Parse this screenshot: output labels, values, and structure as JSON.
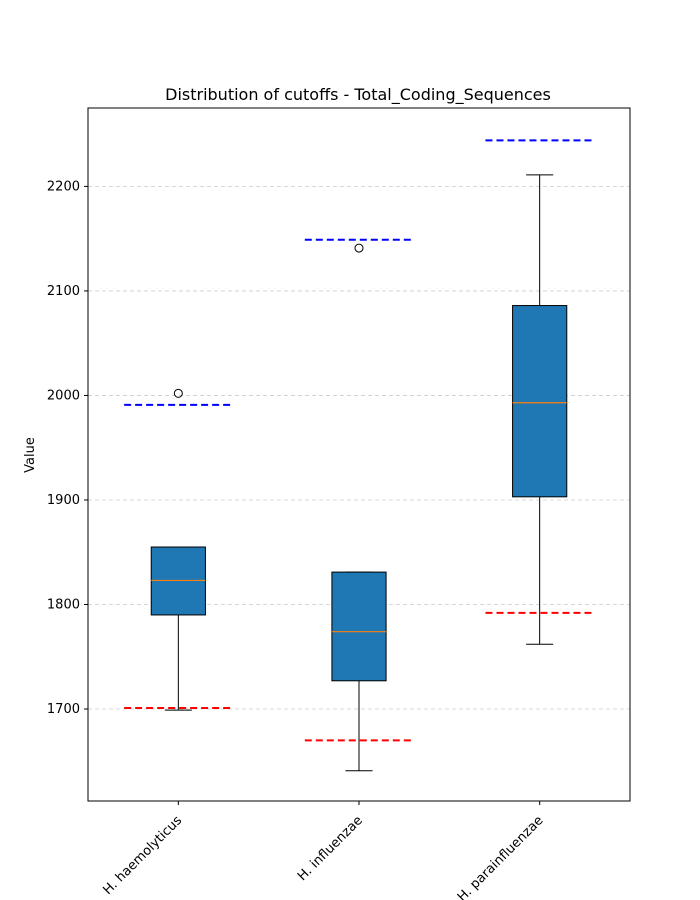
{
  "chart_data": {
    "type": "box",
    "title": "Distribution of cutoffs - Total_Coding_Sequences",
    "xlabel": "",
    "ylabel": "Value",
    "ylim": [
      1612,
      2275
    ],
    "yticks": [
      1700,
      1800,
      1900,
      2000,
      2100,
      2200
    ],
    "grid": "y-dashed",
    "categories": [
      "H. haemolyticus",
      "H. influenzae",
      "H. parainfluenzae"
    ],
    "boxes": [
      {
        "category": "H. haemolyticus",
        "whisker_low": 1699,
        "q1": 1790,
        "median": 1823,
        "q3": 1855,
        "whisker_high": 1855,
        "outliers": [
          2002
        ],
        "upper_cutoff": 1991,
        "lower_cutoff": 1701
      },
      {
        "category": "H. influenzae",
        "whisker_low": 1641,
        "q1": 1727,
        "median": 1774,
        "q3": 1831,
        "whisker_high": 1831,
        "outliers": [
          2141
        ],
        "upper_cutoff": 2149,
        "lower_cutoff": 1670
      },
      {
        "category": "H. parainfluenzae",
        "whisker_low": 1762,
        "q1": 1903,
        "median": 1993,
        "q3": 2086,
        "whisker_high": 2211,
        "outliers": [],
        "upper_cutoff": 2244,
        "lower_cutoff": 1792
      }
    ],
    "colors": {
      "box_fill": "#1f77b4",
      "median": "#ff7f0e",
      "upper_cutoff": "#0000ff",
      "lower_cutoff": "#ff0000",
      "grid": "#cccccc"
    }
  }
}
